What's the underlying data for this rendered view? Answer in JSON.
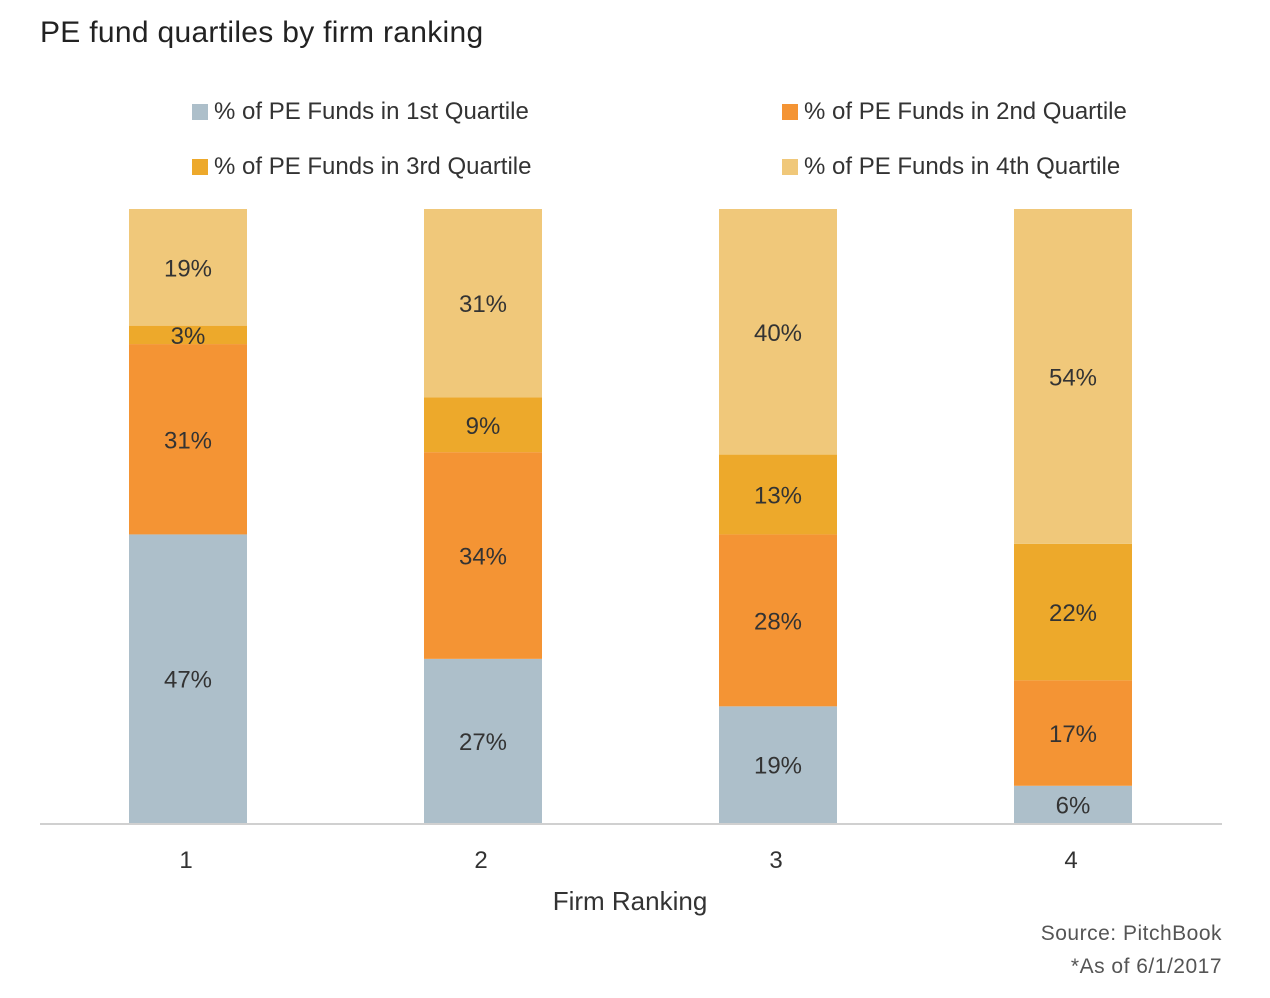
{
  "chart_data": {
    "type": "bar",
    "stacked": true,
    "title": "PE fund quartiles by firm ranking",
    "xlabel": "Firm Ranking",
    "ylabel": "",
    "categories": [
      "1",
      "2",
      "3",
      "4"
    ],
    "ylim": [
      0,
      100
    ],
    "grid": false,
    "legend_placement": "top",
    "series": [
      {
        "name": "% of PE Funds in 1st Quartile",
        "color": "#adbfca",
        "values": [
          47,
          27,
          19,
          6
        ]
      },
      {
        "name": "% of PE Funds in 2nd Quartile",
        "color": "#f49434",
        "values": [
          31,
          34,
          28,
          17
        ]
      },
      {
        "name": "% of PE Funds in 3rd Quartile",
        "color": "#eda92b",
        "values": [
          3,
          9,
          13,
          22
        ]
      },
      {
        "name": "% of PE Funds in 4th Quartile",
        "color": "#f0c87a",
        "values": [
          19,
          31,
          40,
          54
        ]
      }
    ],
    "value_suffix": "%"
  },
  "footer": {
    "source": "Source: PitchBook",
    "as_of": "*As of 6/1/2017"
  }
}
